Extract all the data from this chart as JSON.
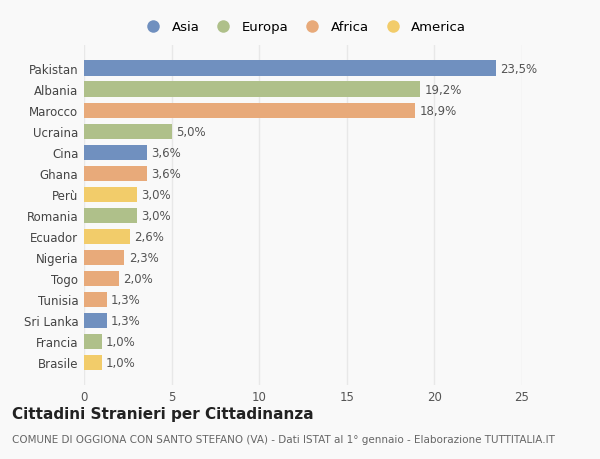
{
  "countries": [
    "Pakistan",
    "Albania",
    "Marocco",
    "Ucraina",
    "Cina",
    "Ghana",
    "Perù",
    "Romania",
    "Ecuador",
    "Nigeria",
    "Togo",
    "Tunisia",
    "Sri Lanka",
    "Francia",
    "Brasile"
  ],
  "values": [
    23.5,
    19.2,
    18.9,
    5.0,
    3.6,
    3.6,
    3.0,
    3.0,
    2.6,
    2.3,
    2.0,
    1.3,
    1.3,
    1.0,
    1.0
  ],
  "continents": [
    "Asia",
    "Europa",
    "Africa",
    "Europa",
    "Asia",
    "Africa",
    "America",
    "Europa",
    "America",
    "Africa",
    "Africa",
    "Africa",
    "Asia",
    "Europa",
    "America"
  ],
  "labels": [
    "23,5%",
    "19,2%",
    "18,9%",
    "5,0%",
    "3,6%",
    "3,6%",
    "3,0%",
    "3,0%",
    "2,6%",
    "2,3%",
    "2,0%",
    "1,3%",
    "1,3%",
    "1,0%",
    "1,0%"
  ],
  "continent_colors": {
    "Asia": "#7090bf",
    "Europa": "#afc08a",
    "Africa": "#e8aa7a",
    "America": "#f2cc6a"
  },
  "legend_order": [
    "Asia",
    "Europa",
    "Africa",
    "America"
  ],
  "title": "Cittadini Stranieri per Cittadinanza",
  "subtitle": "COMUNE DI OGGIONA CON SANTO STEFANO (VA) - Dati ISTAT al 1° gennaio - Elaborazione TUTTITALIA.IT",
  "xlim": [
    0,
    25
  ],
  "xticks": [
    0,
    5,
    10,
    15,
    20,
    25
  ],
  "background_color": "#f9f9f9",
  "grid_color": "#e8e8e8",
  "bar_height": 0.72,
  "title_fontsize": 11,
  "subtitle_fontsize": 7.5,
  "label_fontsize": 8.5,
  "tick_fontsize": 8.5,
  "legend_fontsize": 9.5
}
